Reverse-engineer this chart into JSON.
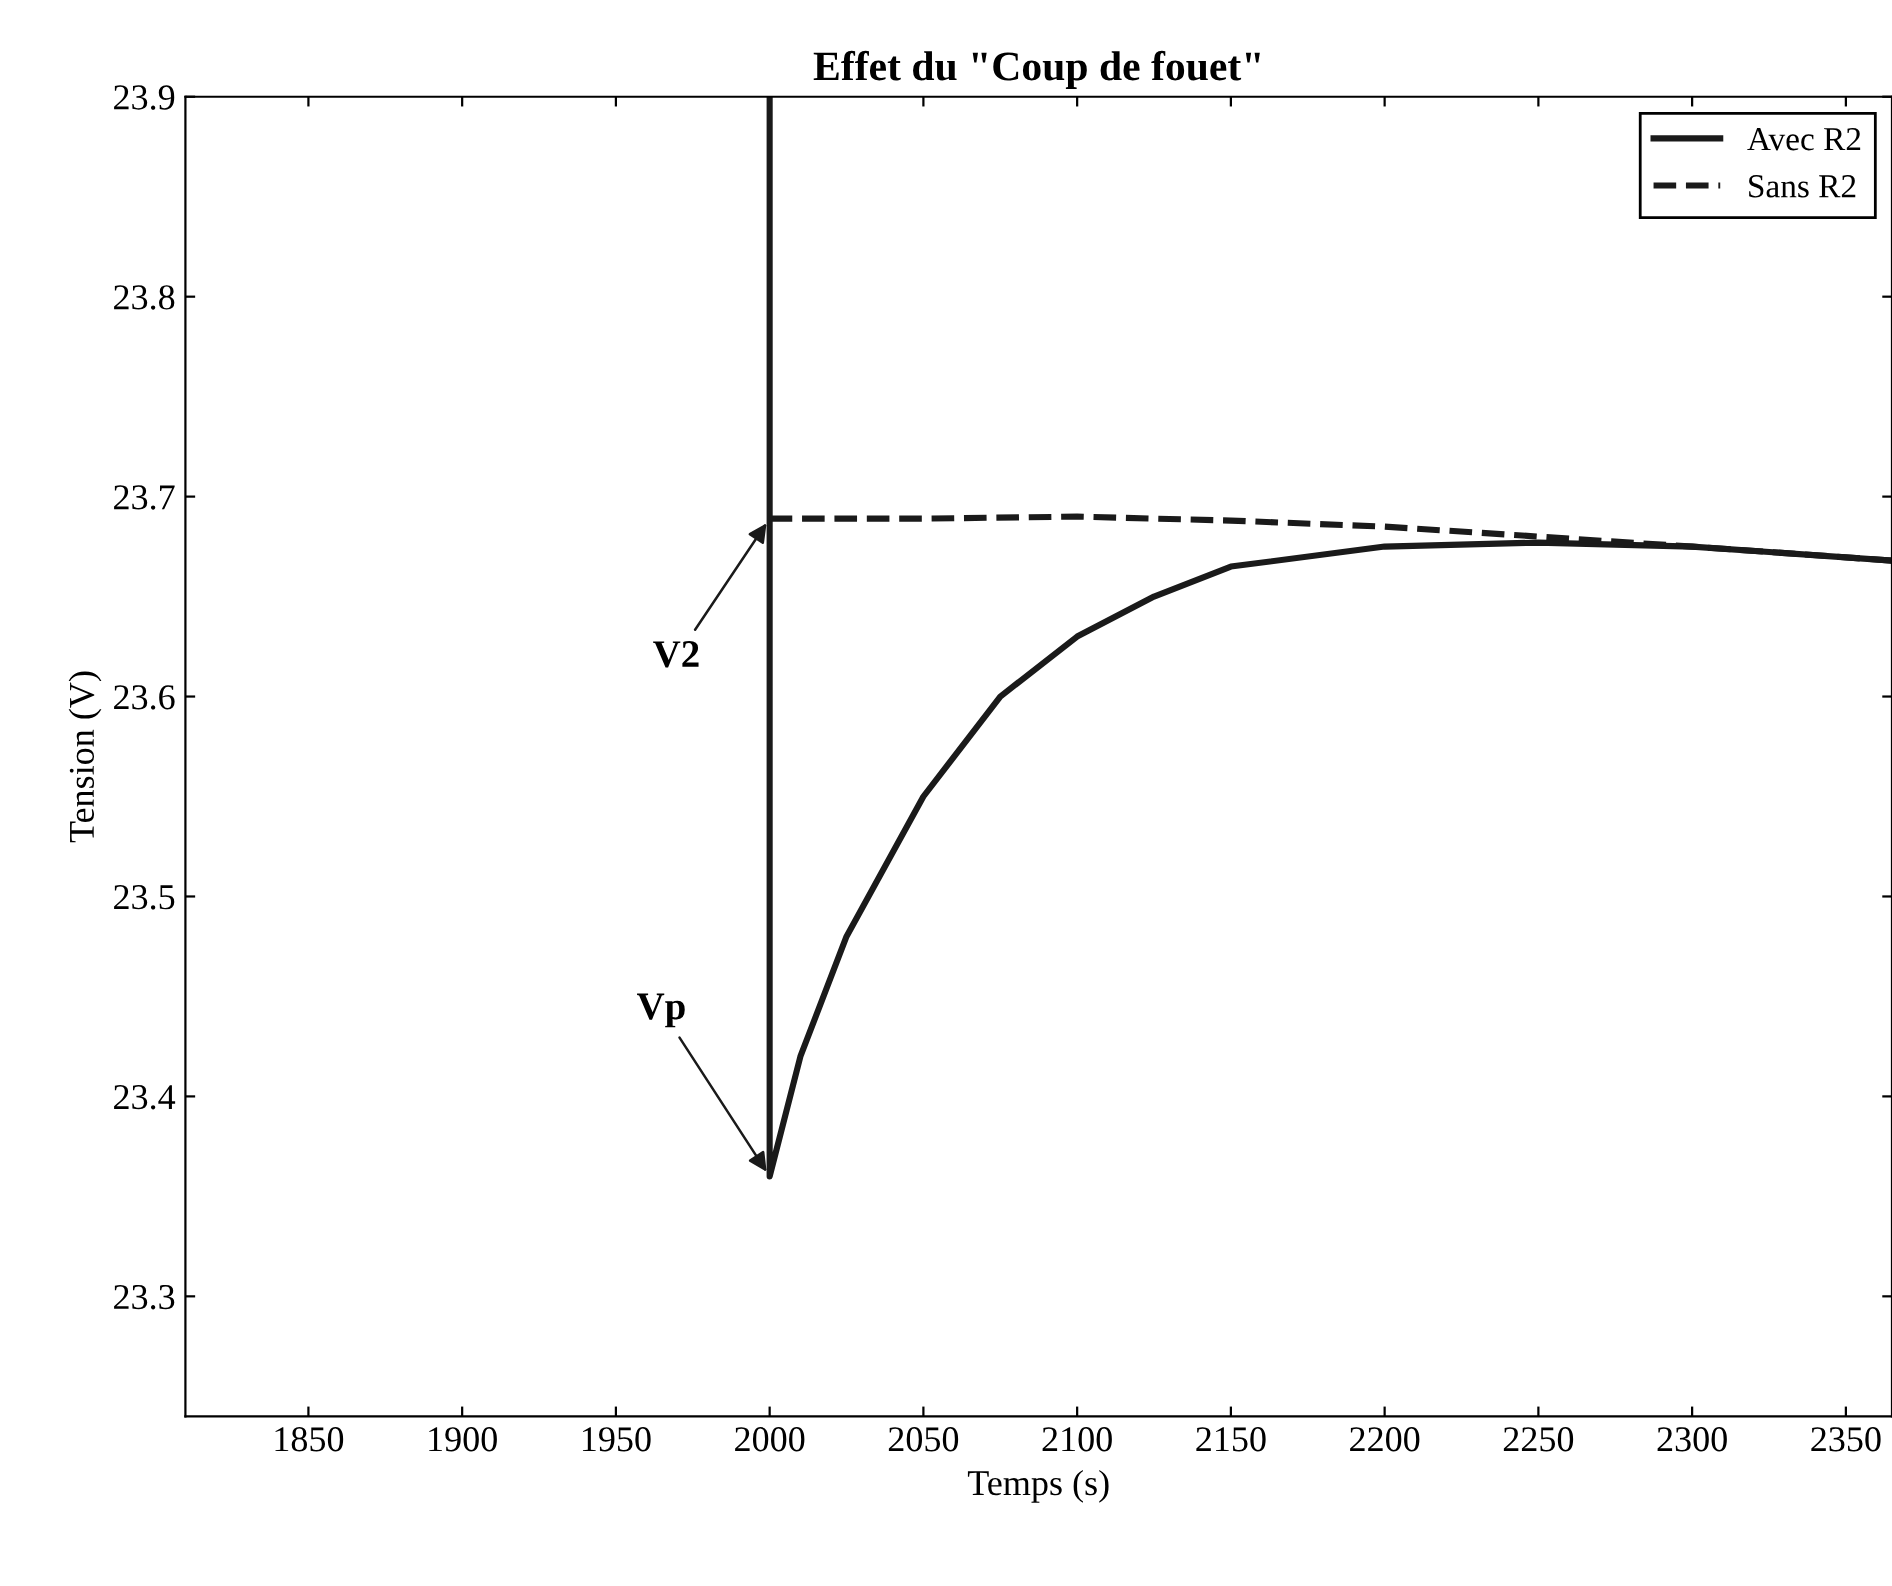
{
  "chart_data": {
    "type": "line",
    "title": "Effet du \"Coup de fouet\"",
    "xlabel": "Temps (s)",
    "ylabel": "Tension (V)",
    "xlim": [
      1810,
      2365
    ],
    "ylim": [
      23.24,
      23.9
    ],
    "xticks": [
      1850,
      1900,
      1950,
      2000,
      2050,
      2100,
      2150,
      2200,
      2250,
      2300,
      2350
    ],
    "yticks": [
      23.3,
      23.4,
      23.5,
      23.6,
      23.7,
      23.8,
      23.9
    ],
    "grid": false,
    "legend": "top right",
    "series": [
      {
        "name": "Avec R2",
        "color": "#1a1a1a",
        "line_style": "solid",
        "x": [
          2000,
          2000,
          2010,
          2025,
          2050,
          2075,
          2100,
          2125,
          2150,
          2200,
          2250,
          2300,
          2365
        ],
        "values": [
          23.9,
          23.36,
          23.42,
          23.48,
          23.55,
          23.6,
          23.63,
          23.65,
          23.665,
          23.675,
          23.677,
          23.675,
          23.668
        ]
      },
      {
        "name": "Sans R2",
        "color": "#1a1a1a",
        "line_style": "dashed",
        "x": [
          2000,
          2050,
          2100,
          2150,
          2200,
          2250,
          2300,
          2365
        ],
        "values": [
          23.689,
          23.689,
          23.69,
          23.688,
          23.685,
          23.68,
          23.675,
          23.668
        ]
      }
    ],
    "annotations": [
      {
        "text": "V2",
        "x": 2000,
        "y": 23.689
      },
      {
        "text": "Vp",
        "x": 2000,
        "y": 23.36
      }
    ]
  }
}
